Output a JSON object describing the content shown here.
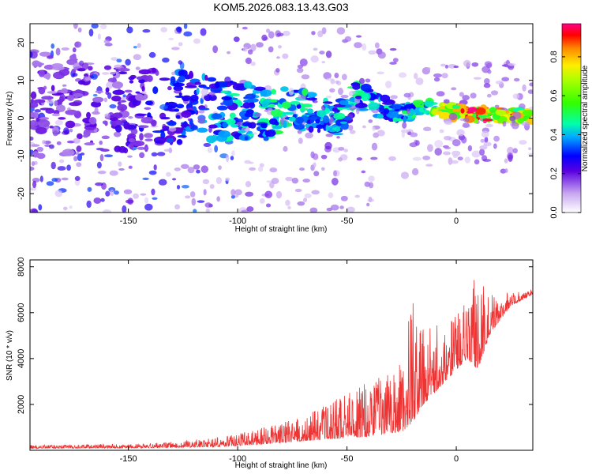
{
  "title": "KOM5.2026.083.13.43.G03",
  "chart_data": [
    {
      "type": "heatmap",
      "title": "KOM5.2026.083.13.43.G03",
      "xlabel": "Height of straight line (km)",
      "ylabel": "Frequency (Hz)",
      "xlim": [
        -195,
        35
      ],
      "ylim": [
        -25,
        25
      ],
      "xticks": [
        -150,
        -100,
        -50,
        0
      ],
      "xtick_labels": [
        "-150",
        "-100",
        "-50",
        "0"
      ],
      "yticks": [
        -20,
        -10,
        0,
        10,
        20
      ],
      "ytick_labels": [
        "-20",
        "-10",
        "0",
        "10",
        "20"
      ],
      "colorbar": {
        "label": "Normalized spectral amplitude",
        "range": [
          0,
          0.97
        ],
        "ticks": [
          0.0,
          0.2,
          0.4,
          0.6,
          0.8
        ],
        "tick_labels": [
          "0.0",
          "0.2",
          "0.4",
          "0.6",
          "0.8"
        ]
      },
      "ridge": [
        {
          "x": -190,
          "freq": 4,
          "amp": 0.18
        },
        {
          "x": -170,
          "freq": 3,
          "amp": 0.2
        },
        {
          "x": -150,
          "freq": 2,
          "amp": 0.22
        },
        {
          "x": -130,
          "freq": 3,
          "amp": 0.3
        },
        {
          "x": -115,
          "freq": 3,
          "amp": 0.38
        },
        {
          "x": -100,
          "freq": 2,
          "amp": 0.42
        },
        {
          "x": -85,
          "freq": 1,
          "amp": 0.45
        },
        {
          "x": -75,
          "freq": 3,
          "amp": 0.48
        },
        {
          "x": -65,
          "freq": 1,
          "amp": 0.45
        },
        {
          "x": -55,
          "freq": -1,
          "amp": 0.42
        },
        {
          "x": -45,
          "freq": 6,
          "amp": 0.45
        },
        {
          "x": -35,
          "freq": 3,
          "amp": 0.4
        },
        {
          "x": -25,
          "freq": 1,
          "amp": 0.45
        },
        {
          "x": -15,
          "freq": 3,
          "amp": 0.55
        },
        {
          "x": -5,
          "freq": 2,
          "amp": 0.75
        },
        {
          "x": 5,
          "freq": 1,
          "amp": 0.9
        },
        {
          "x": 15,
          "freq": 1,
          "amp": 0.85
        },
        {
          "x": 25,
          "freq": 0.5,
          "amp": 0.8
        },
        {
          "x": 35,
          "freq": 0.5,
          "amp": 0.75
        }
      ]
    },
    {
      "type": "line",
      "xlabel": "Height of straight line (km)",
      "ylabel": "SNR (10 * v/v)",
      "xlim": [
        -195,
        35
      ],
      "ylim": [
        0,
        8300
      ],
      "xticks": [
        -150,
        -100,
        -50,
        0
      ],
      "xtick_labels": [
        "-150",
        "-100",
        "-50",
        "0"
      ],
      "yticks": [
        2000,
        4000,
        6000,
        8000
      ],
      "ytick_labels": [
        "2000",
        "4000",
        "6000",
        "8000"
      ],
      "color": "#ee3333",
      "series": [
        {
          "name": "SNR",
          "envelope": [
            {
              "x": -195,
              "base": 80,
              "amp": 150
            },
            {
              "x": -150,
              "base": 100,
              "amp": 180
            },
            {
              "x": -130,
              "base": 120,
              "amp": 250
            },
            {
              "x": -110,
              "base": 150,
              "amp": 400
            },
            {
              "x": -90,
              "base": 250,
              "amp": 700
            },
            {
              "x": -70,
              "base": 400,
              "amp": 1100
            },
            {
              "x": -55,
              "base": 500,
              "amp": 1800
            },
            {
              "x": -40,
              "base": 600,
              "amp": 2400
            },
            {
              "x": -25,
              "base": 800,
              "amp": 3000
            },
            {
              "x": -20,
              "base": 1200,
              "amp": 5500
            },
            {
              "x": -15,
              "base": 2000,
              "amp": 3500
            },
            {
              "x": -5,
              "base": 3000,
              "amp": 2500
            },
            {
              "x": 5,
              "base": 4000,
              "amp": 2500
            },
            {
              "x": 10,
              "base": 3500,
              "amp": 4500
            },
            {
              "x": 15,
              "base": 5000,
              "amp": 1800
            },
            {
              "x": 25,
              "base": 6300,
              "amp": 600
            },
            {
              "x": 35,
              "base": 6800,
              "amp": 300
            }
          ]
        }
      ]
    }
  ]
}
